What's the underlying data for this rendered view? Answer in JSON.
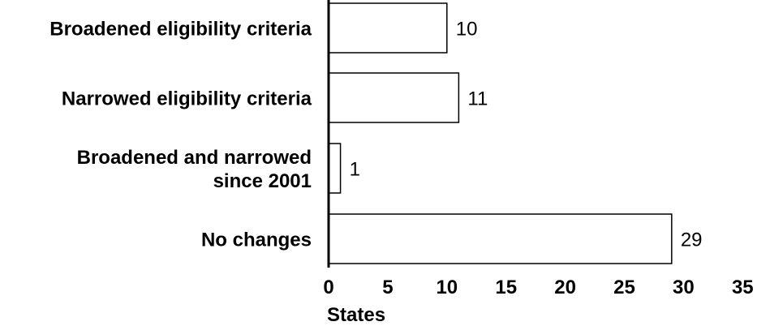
{
  "chart_data": {
    "type": "bar",
    "orientation": "horizontal",
    "categories": [
      [
        "Broadened eligibility criteria"
      ],
      [
        "Narrowed eligibility criteria"
      ],
      [
        "Broadened and narrowed",
        "since 2001"
      ],
      [
        "No changes"
      ]
    ],
    "values": [
      10,
      11,
      1,
      29
    ],
    "value_labels": [
      "10",
      "11",
      "1",
      "29"
    ],
    "xlabel": "States",
    "ylabel": "",
    "xlim": [
      0,
      35
    ],
    "xticks": [
      "0",
      "5",
      "10",
      "15",
      "20",
      "25",
      "30",
      "35"
    ],
    "grid": false,
    "legend": "none",
    "colors": {
      "bar_fill": "#ffffff",
      "bar_stroke": "#000000",
      "axis": "#000000",
      "text": "#000000"
    }
  }
}
